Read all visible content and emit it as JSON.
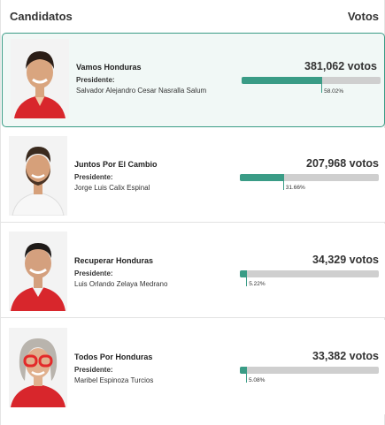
{
  "header": {
    "left": "Candidatos",
    "right": "Votos"
  },
  "theme": {
    "accent": "#3a9c86",
    "bar_track": "#cfcfcf",
    "lead_bg": "#f1f8f6"
  },
  "candidates": [
    {
      "party": "Vamos Honduras",
      "president_label": "Presidente:",
      "president_name": "Salvador Alejandro Cesar Nasralla Salum",
      "votes": "381,062 votos",
      "percent_label": "58.02%",
      "percent": 58.02,
      "leading": true,
      "photo": "candidate-photo-red-shirt"
    },
    {
      "party": "Juntos Por El Cambio",
      "president_label": "Presidente:",
      "president_name": "Jorge Luis Calix Espinal",
      "votes": "207,968 votos",
      "percent_label": "31.66%",
      "percent": 31.66,
      "leading": false,
      "photo": "candidate-photo-white-shirt"
    },
    {
      "party": "Recuperar Honduras",
      "president_label": "Presidente:",
      "president_name": "Luis Orlando Zelaya Medrano",
      "votes": "34,329 votos",
      "percent_label": "5.22%",
      "percent": 5.22,
      "leading": false,
      "photo": "candidate-photo-red-shirt"
    },
    {
      "party": "Todos Por Honduras",
      "president_label": "Presidente:",
      "president_name": "Maribel Espinoza Turcios",
      "votes": "33,382 votos",
      "percent_label": "5.08%",
      "percent": 5.08,
      "leading": false,
      "photo": "candidate-photo-red-glasses"
    }
  ]
}
